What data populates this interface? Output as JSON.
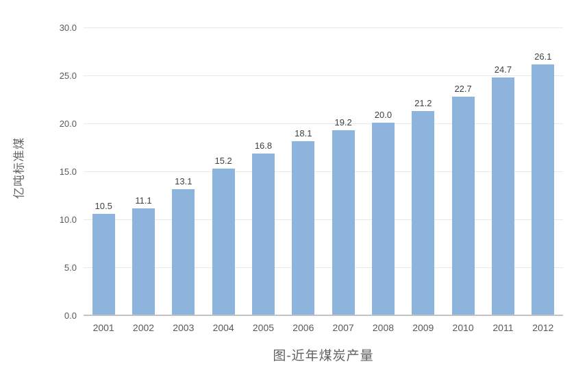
{
  "chart_data": {
    "type": "bar",
    "title": "图-近年煤炭产量",
    "ylabel": "亿吨标准煤",
    "xlabel": "",
    "categories": [
      "2001",
      "2002",
      "2003",
      "2004",
      "2005",
      "2006",
      "2007",
      "2008",
      "2009",
      "2010",
      "2011",
      "2012"
    ],
    "values": [
      10.5,
      11.1,
      13.1,
      15.2,
      16.8,
      18.1,
      19.2,
      20.0,
      21.2,
      22.7,
      24.7,
      26.1
    ],
    "value_labels": [
      "10.5",
      "11.1",
      "13.1",
      "15.2",
      "16.8",
      "18.1",
      "19.2",
      "20.0",
      "21.2",
      "22.7",
      "24.7",
      "26.1"
    ],
    "ylim": [
      0,
      30
    ],
    "yticks": [
      0,
      5,
      10,
      15,
      20,
      25,
      30
    ],
    "ytick_labels": [
      "0.0",
      "5.0",
      "10.0",
      "15.0",
      "20.0",
      "25.0",
      "30.0"
    ],
    "grid": true,
    "legend": "none",
    "colors": {
      "bar": "#8DB4DD",
      "gridline": "#E8E8E8",
      "axis_line": "#C3C3C3",
      "tick_text": "#595959",
      "value_label_text": "#3F3F3F",
      "title_text": "#5F5F5F",
      "ylabel_text": "#666666"
    }
  }
}
